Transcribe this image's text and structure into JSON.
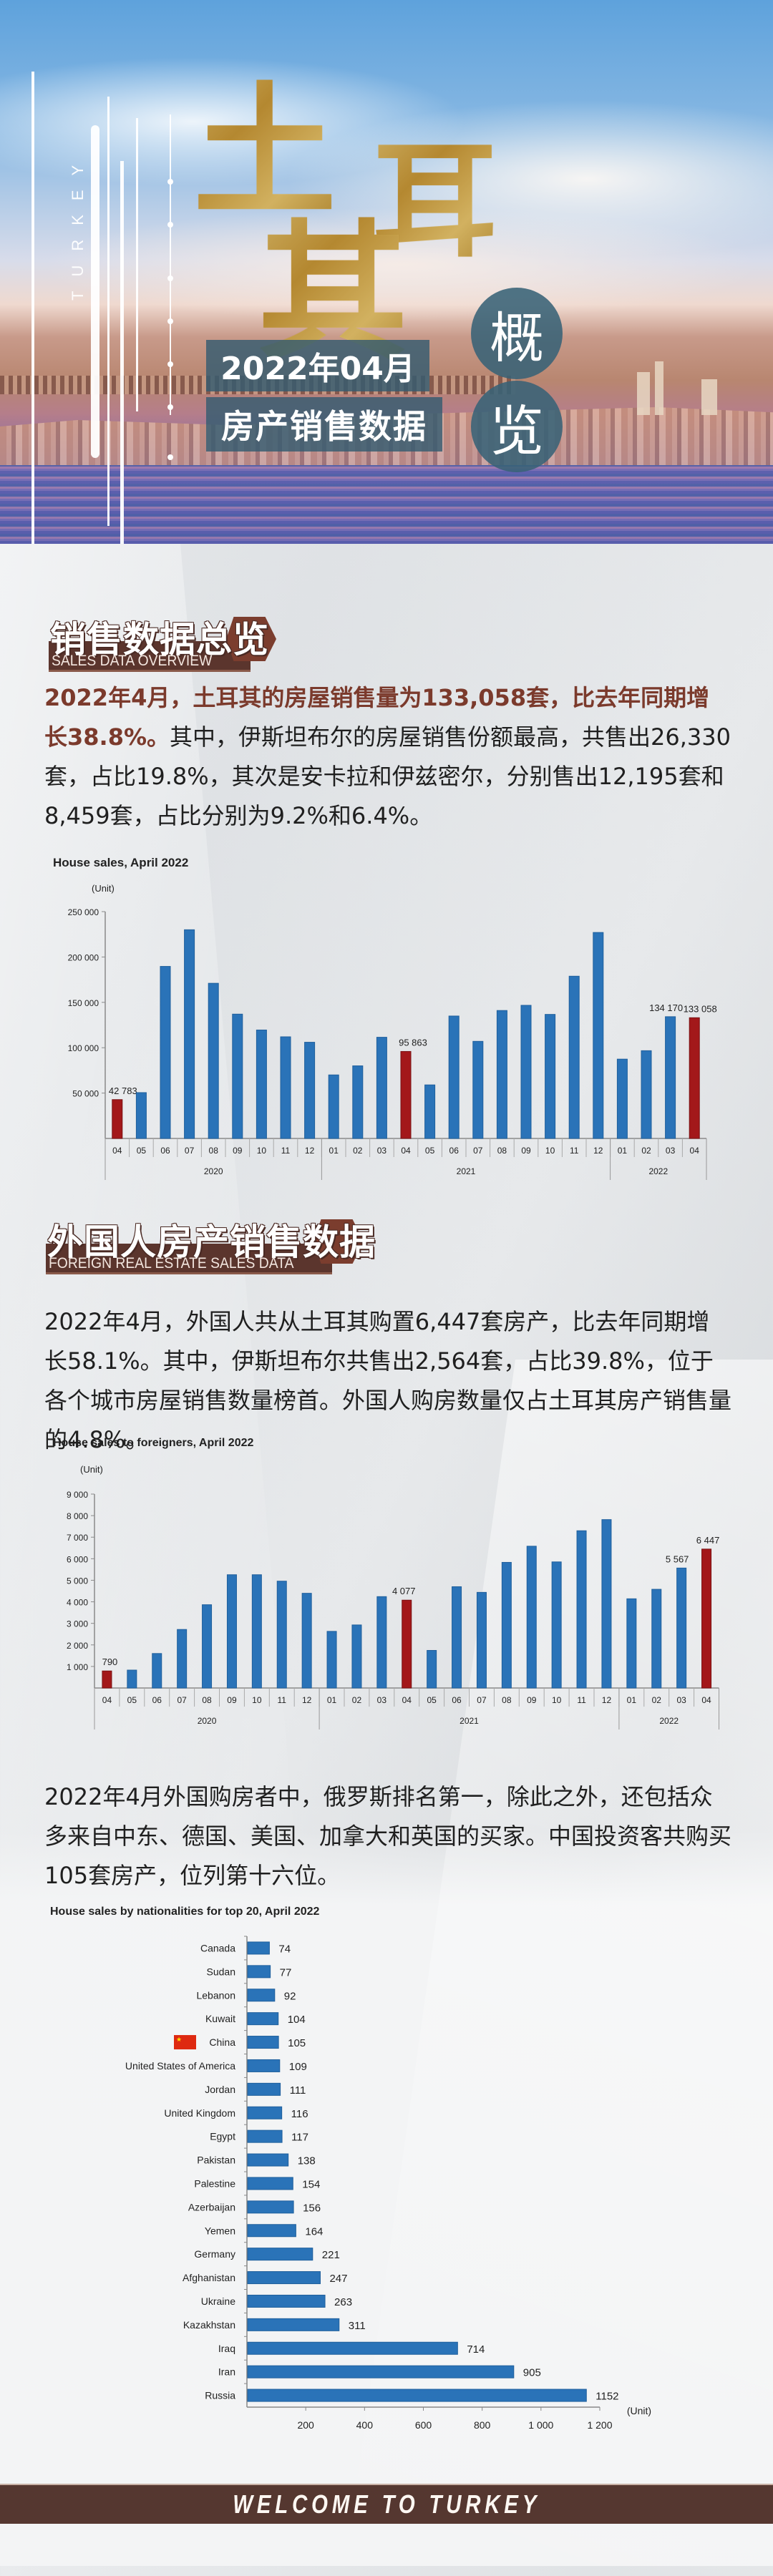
{
  "hero": {
    "vertical_text": "TURKEY",
    "big_title_chars": [
      "土",
      "耳",
      "其"
    ],
    "date": "2022年04月",
    "subtitle": "房产销售数据",
    "overview_chars": [
      "概",
      "览"
    ]
  },
  "sections": [
    {
      "title_cn": "销售数据总览",
      "title_en": "SALES DATA OVERVIEW",
      "paragraph_highlight": "2022年4月，土耳其的房屋销售量为133,058套，比去年同期增长38.8%。",
      "paragraph_rest": "其中，伊斯坦布尔的房屋销售份额最高，共售出26,330套，占比19.8%，其次是安卡拉和伊兹密尔，分别售出12,195套和8,459套，占比分别为9.2%和6.4%。"
    },
    {
      "title_cn": "外国人房产销售数据",
      "title_en": "FOREIGN REAL ESTATE SALES DATA",
      "paragraph": "2022年4月，外国人共从土耳其购置6,447套房产，比去年同期增长58.1%。其中，伊斯坦布尔共售出2,564套，占比39.8%，位于各个城市房屋销售数量榜首。外国人购房数量仅占土耳其房产销售量的4.8%。"
    },
    {
      "paragraph": "2022年4月外国购房者中，俄罗斯排名第一，除此之外，还包括众多来自中东、德国、美国、加拿大和英国的买家。中国投资客共购买105套房产，位列第十六位。"
    }
  ],
  "colors": {
    "bar_blue": "#2a73b8",
    "bar_red": "#a3181a",
    "header_brown": "#5b352d",
    "highlight_text": "#7b3a2c",
    "footer_bg": "#553730"
  },
  "chart_data": [
    {
      "type": "bar",
      "title": "House sales, April 2022",
      "ylabel": "(Unit)",
      "xlabel": "",
      "ylim": [
        0,
        250000
      ],
      "yticks": [
        50000,
        100000,
        150000,
        200000,
        250000
      ],
      "ytick_labels": [
        "50 000",
        "100 000",
        "150 000",
        "200 000",
        "250 000"
      ],
      "grid": false,
      "categories": [
        "04",
        "05",
        "06",
        "07",
        "08",
        "09",
        "10",
        "11",
        "12",
        "01",
        "02",
        "03",
        "04",
        "05",
        "06",
        "07",
        "08",
        "09",
        "10",
        "11",
        "12",
        "01",
        "02",
        "03",
        "04"
      ],
      "year_groups": [
        {
          "label": "2020",
          "span": 9
        },
        {
          "label": "2021",
          "span": 12
        },
        {
          "label": "2022",
          "span": 4
        }
      ],
      "values": [
        42783,
        50500,
        189600,
        230000,
        171000,
        137000,
        119500,
        112000,
        106000,
        70000,
        80000,
        111500,
        95863,
        59000,
        134900,
        107000,
        141000,
        146700,
        136700,
        178800,
        227000,
        87400,
        96700,
        134170,
        133058
      ],
      "highlight_indices": [
        0,
        12,
        24
      ],
      "data_labels": {
        "0": "42 783",
        "12": "95 863",
        "23": "134 170",
        "24": "133 058"
      }
    },
    {
      "type": "bar",
      "title": "House sales to foreigners, April 2022",
      "ylabel": "(Unit)",
      "xlabel": "",
      "ylim": [
        0,
        9000
      ],
      "yticks": [
        1000,
        2000,
        3000,
        4000,
        5000,
        6000,
        7000,
        8000,
        9000
      ],
      "ytick_labels": [
        "1 000",
        "2 000",
        "3 000",
        "4 000",
        "5 000",
        "6 000",
        "7 000",
        "8 000",
        "9 000"
      ],
      "grid": false,
      "categories": [
        "04",
        "05",
        "06",
        "07",
        "08",
        "09",
        "10",
        "11",
        "12",
        "01",
        "02",
        "03",
        "04",
        "05",
        "06",
        "07",
        "08",
        "09",
        "10",
        "11",
        "12",
        "01",
        "02",
        "03",
        "04"
      ],
      "year_groups": [
        {
          "label": "2020",
          "span": 9
        },
        {
          "label": "2021",
          "span": 12
        },
        {
          "label": "2022",
          "span": 4
        }
      ],
      "values": [
        790,
        830,
        1600,
        2716,
        3864,
        5256,
        5256,
        4958,
        4395,
        2628,
        2926,
        4240,
        4077,
        1744,
        4700,
        4438,
        5830,
        6580,
        5852,
        7298,
        7815,
        4140,
        4580,
        5567,
        6447
      ],
      "highlight_indices": [
        0,
        12,
        24
      ],
      "data_labels": {
        "0": "790",
        "12": "4 077",
        "23": "5 567",
        "24": "6 447"
      }
    },
    {
      "type": "bar",
      "orientation": "horizontal",
      "title": "House sales by nationalities for top 20, April 2022",
      "xlabel": "(Unit)",
      "ylabel": "",
      "xlim": [
        0,
        1200
      ],
      "xticks": [
        200,
        400,
        600,
        800,
        1000,
        1200
      ],
      "xtick_labels": [
        "200",
        "400",
        "600",
        "800",
        "1 000",
        "1 200"
      ],
      "grid": false,
      "categories": [
        "Canada",
        "Sudan",
        "Lebanon",
        "Kuwait",
        "China",
        "United States of America",
        "Jordan",
        "United Kingdom",
        "Egypt",
        "Pakistan",
        "Palestine",
        "Azerbaijan",
        "Yemen",
        "Germany",
        "Afghanistan",
        "Ukraine",
        "Kazakhstan",
        "Iraq",
        "Iran",
        "Russia"
      ],
      "values": [
        74,
        77,
        92,
        104,
        105,
        109,
        111,
        116,
        117,
        138,
        154,
        156,
        164,
        221,
        247,
        263,
        311,
        714,
        905,
        1152
      ],
      "flag_marked": "China"
    }
  ],
  "footer": {
    "text": "WELCOME TO TURKEY"
  }
}
